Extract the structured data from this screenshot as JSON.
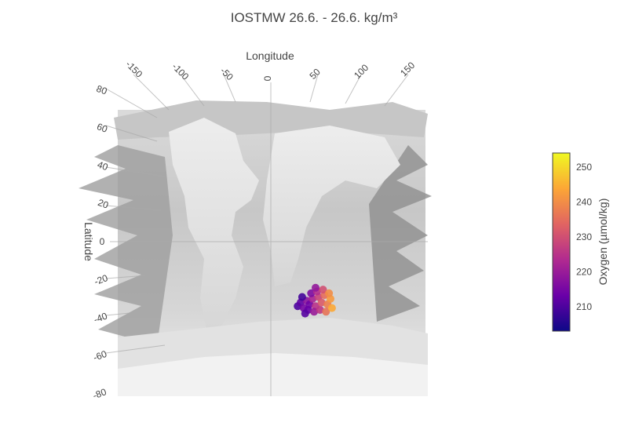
{
  "chart_data": {
    "type": "scatter",
    "title": "IOSTMW 26.6. - 26.6. kg/m³",
    "xlabel": "Longitude",
    "ylabel": "Latitude",
    "x_ticks": [
      "-150",
      "-100",
      "-50",
      "0",
      "50",
      "100",
      "150"
    ],
    "y_ticks": [
      "80",
      "60",
      "40",
      "20",
      "0",
      "-20",
      "-40",
      "-60",
      "-80"
    ],
    "xlim": [
      -180,
      180
    ],
    "ylim": [
      -90,
      90
    ],
    "colorbar": {
      "title": "Oxygen (µmol/kg)",
      "ticks": [
        "250",
        "240",
        "230",
        "220",
        "210"
      ],
      "range": [
        203,
        254
      ],
      "colors": [
        "#0d0887",
        "#6a00a8",
        "#b12a90",
        "#e16462",
        "#fca636",
        "#f0f921"
      ]
    },
    "points": [
      {
        "lon": 18,
        "lat": -35,
        "oxygen": 210
      },
      {
        "lon": 20,
        "lat": -33,
        "oxygen": 212
      },
      {
        "lon": 22,
        "lat": -36,
        "oxygen": 215
      },
      {
        "lon": 24,
        "lat": -32,
        "oxygen": 218
      },
      {
        "lon": 26,
        "lat": -34,
        "oxygen": 214
      },
      {
        "lon": 28,
        "lat": -31,
        "oxygen": 222
      },
      {
        "lon": 30,
        "lat": -35,
        "oxygen": 225
      },
      {
        "lon": 32,
        "lat": -30,
        "oxygen": 228
      },
      {
        "lon": 34,
        "lat": -33,
        "oxygen": 232
      },
      {
        "lon": 36,
        "lat": -29,
        "oxygen": 235
      },
      {
        "lon": 38,
        "lat": -34,
        "oxygen": 238
      },
      {
        "lon": 40,
        "lat": -31,
        "oxygen": 242
      },
      {
        "lon": 25,
        "lat": -37,
        "oxygen": 213
      },
      {
        "lon": 29,
        "lat": -38,
        "oxygen": 220
      },
      {
        "lon": 33,
        "lat": -37,
        "oxygen": 226
      },
      {
        "lon": 37,
        "lat": -38,
        "oxygen": 236
      },
      {
        "lon": 21,
        "lat": -30,
        "oxygen": 209
      },
      {
        "lon": 27,
        "lat": -28,
        "oxygen": 216
      },
      {
        "lon": 31,
        "lat": -27,
        "oxygen": 224
      },
      {
        "lon": 35,
        "lat": -26,
        "oxygen": 230
      },
      {
        "lon": 39,
        "lat": -28,
        "oxygen": 240
      },
      {
        "lon": 23,
        "lat": -39,
        "oxygen": 211
      },
      {
        "lon": 41,
        "lat": -36,
        "oxygen": 244
      },
      {
        "lon": 30,
        "lat": -25,
        "oxygen": 219
      }
    ]
  }
}
